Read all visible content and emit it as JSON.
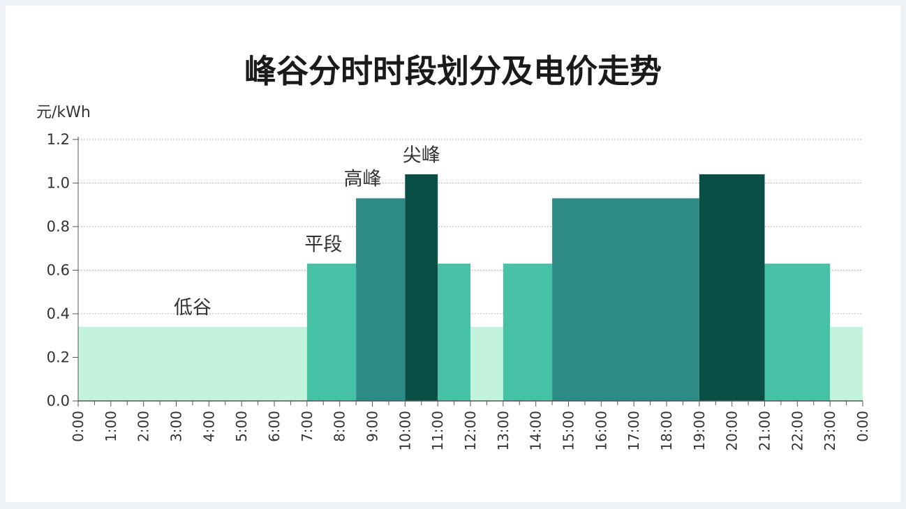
{
  "chart_data": {
    "type": "bar",
    "title": "峰谷分时时段划分及电价走势",
    "ylabel": "元/kWh",
    "ylim": [
      0,
      1.2
    ],
    "yticks": [
      "0.0",
      "0.2",
      "0.4",
      "0.6",
      "0.8",
      "1.0",
      "1.2"
    ],
    "xticks": [
      "0:00",
      "1:00",
      "2:00",
      "3:00",
      "4:00",
      "5:00",
      "6:00",
      "7:00",
      "8:00",
      "9:00",
      "10:00",
      "11:00",
      "12:00",
      "13:00",
      "14:00",
      "15:00",
      "16:00",
      "17:00",
      "18:00",
      "19:00",
      "20:00",
      "21:00",
      "22:00",
      "23:00",
      "0:00"
    ],
    "grid": true,
    "colors": {
      "低谷": "#c3f3dd",
      "平段": "#47c1a6",
      "高峰": "#2e8b86",
      "尖峰": "#0a4f45"
    },
    "segments": [
      {
        "start": 0,
        "end": 7,
        "value": 0.34,
        "period": "低谷"
      },
      {
        "start": 7,
        "end": 8.5,
        "value": 0.63,
        "period": "平段"
      },
      {
        "start": 8.5,
        "end": 10,
        "value": 0.93,
        "period": "高峰"
      },
      {
        "start": 10,
        "end": 11,
        "value": 1.04,
        "period": "尖峰"
      },
      {
        "start": 11,
        "end": 12,
        "value": 0.63,
        "period": "平段"
      },
      {
        "start": 12,
        "end": 13,
        "value": 0.34,
        "period": "低谷"
      },
      {
        "start": 13,
        "end": 14.5,
        "value": 0.63,
        "period": "平段"
      },
      {
        "start": 14.5,
        "end": 19,
        "value": 0.93,
        "period": "高峰"
      },
      {
        "start": 19,
        "end": 21,
        "value": 1.04,
        "period": "尖峰"
      },
      {
        "start": 21,
        "end": 23,
        "value": 0.63,
        "period": "平段"
      },
      {
        "start": 23,
        "end": 24,
        "value": 0.34,
        "period": "低谷"
      }
    ],
    "annotations": [
      {
        "text": "低谷",
        "x": 3.5,
        "y": 0.4
      },
      {
        "text": "平段",
        "x": 7.5,
        "y": 0.69
      },
      {
        "text": "高峰",
        "x": 8.7,
        "y": 0.99
      },
      {
        "text": "尖峰",
        "x": 10.5,
        "y": 1.1
      }
    ]
  }
}
